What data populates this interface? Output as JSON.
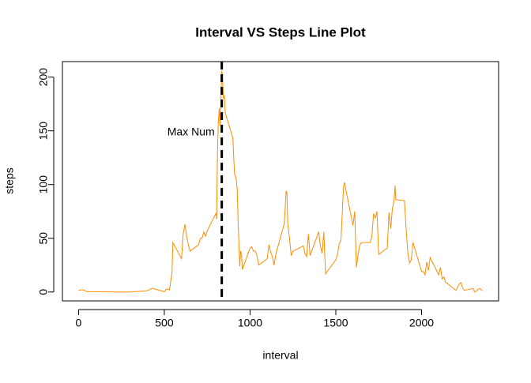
{
  "chart_data": {
    "type": "line",
    "title": "Interval VS Steps Line Plot",
    "x_label": "interval",
    "y_label": "steps",
    "color": "#ff8c00",
    "x": [
      0,
      25,
      50,
      100,
      150,
      200,
      300,
      400,
      430,
      450,
      500,
      515,
      530,
      545,
      550,
      600,
      610,
      620,
      630,
      640,
      650,
      700,
      710,
      720,
      730,
      740,
      750,
      800,
      805,
      810,
      815,
      820,
      825,
      830,
      835,
      840,
      845,
      850,
      855,
      900,
      905,
      910,
      915,
      920,
      925,
      930,
      935,
      940,
      945,
      950,
      955,
      1000,
      1010,
      1020,
      1030,
      1040,
      1050,
      1100,
      1110,
      1120,
      1130,
      1140,
      1150,
      1200,
      1210,
      1215,
      1220,
      1230,
      1240,
      1250,
      1300,
      1310,
      1320,
      1330,
      1340,
      1350,
      1400,
      1410,
      1420,
      1430,
      1440,
      1500,
      1510,
      1520,
      1530,
      1545,
      1550,
      1600,
      1610,
      1620,
      1630,
      1640,
      1650,
      1700,
      1710,
      1720,
      1730,
      1740,
      1750,
      1800,
      1810,
      1820,
      1830,
      1840,
      1845,
      1850,
      1900,
      1910,
      1920,
      1930,
      1940,
      1950,
      2000,
      2010,
      2020,
      2030,
      2040,
      2050,
      2100,
      2110,
      2120,
      2130,
      2140,
      2150,
      2200,
      2210,
      2220,
      2230,
      2240,
      2250,
      2300,
      2310,
      2320,
      2330,
      2340,
      2355
    ],
    "values": [
      1.7,
      2.1,
      0.3,
      0.3,
      0.2,
      0,
      0,
      1.2,
      3.5,
      2.5,
      0.3,
      3,
      2,
      18,
      46,
      31,
      54,
      63,
      52,
      44,
      38,
      44,
      50,
      50,
      56,
      52,
      57,
      73,
      68,
      129,
      158,
      171,
      155,
      177,
      206,
      196,
      180,
      183,
      167,
      143,
      124,
      109,
      108,
      104,
      96,
      66,
      45,
      24,
      38,
      35,
      21,
      41,
      42,
      38,
      38,
      34,
      25,
      31,
      44,
      37,
      33,
      25,
      35,
      64,
      94,
      92,
      63,
      50,
      34,
      38,
      42,
      43,
      36,
      33,
      54,
      34,
      56,
      43,
      36,
      56,
      17,
      30,
      35,
      45,
      48,
      98,
      102,
      62,
      75,
      23,
      35,
      44,
      46,
      46,
      51,
      73,
      69,
      75,
      35,
      41,
      74,
      59,
      78,
      85,
      99,
      86,
      85,
      59,
      36,
      27,
      30,
      46,
      19,
      19,
      16,
      28,
      20,
      32,
      16,
      23,
      12,
      14,
      9,
      8,
      1.5,
      4.6,
      7.6,
      8.8,
      3.3,
      1.6,
      3.3,
      0,
      1,
      2.6,
      3.3,
      1.1
    ],
    "vline": 835,
    "vline_label": "Max Num",
    "xlim": [
      -94.2,
      2449.2
    ],
    "xticks": [
      0,
      500,
      1000,
      1500,
      2000
    ],
    "ylim": [
      -8.25,
      214.42
    ],
    "yticks": [
      0,
      50,
      100,
      150,
      200
    ]
  }
}
